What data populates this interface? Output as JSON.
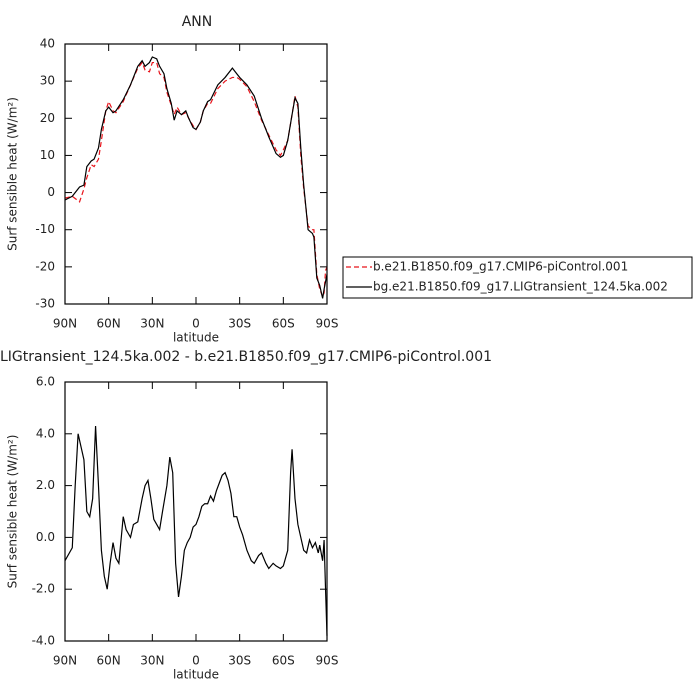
{
  "chart_data": [
    {
      "type": "line",
      "title": "ANN",
      "xlabel": "latitude",
      "ylabel": "Surf sensible heat (W/m²)",
      "x": [
        90,
        85,
        80,
        77,
        75,
        72,
        70,
        67,
        65,
        62,
        60,
        57,
        55,
        50,
        45,
        40,
        37,
        35,
        32,
        30,
        27,
        25,
        22,
        20,
        17,
        15,
        13,
        10,
        7,
        5,
        2,
        0,
        -3,
        -5,
        -8,
        -10,
        -15,
        -20,
        -25,
        -28,
        -30,
        -35,
        -40,
        -45,
        -50,
        -55,
        -58,
        -60,
        -63,
        -66,
        -68,
        -70,
        -72,
        -74,
        -77,
        -80,
        -81,
        -83,
        -85,
        -87,
        -88,
        -89,
        -90
      ],
      "series": [
        {
          "name": "b.e21.B1850.f09_g17.CMIP6-piControl.001",
          "color": "#e8141b",
          "line_style": "dashed",
          "values": [
            -1.5,
            -1,
            -2.5,
            1,
            4,
            7.5,
            7,
            9,
            14,
            22,
            24.5,
            22,
            21.5,
            24.5,
            29,
            33.5,
            35,
            33,
            32.5,
            35,
            35,
            32,
            31,
            27,
            23.5,
            21,
            23,
            21,
            21.5,
            20,
            18,
            17,
            19,
            22,
            24,
            24,
            28,
            30,
            31,
            31,
            30.5,
            28.5,
            24.5,
            19.5,
            15.5,
            11.5,
            10,
            11.5,
            14,
            21,
            26,
            23,
            10,
            1,
            -9,
            -10,
            -10,
            -22,
            -26,
            -28,
            -27,
            -21,
            -20
          ]
        },
        {
          "name": "bg.e21.B1850.f09_g17.LIGtransient_124.5ka.002",
          "color": "#000000",
          "line_style": "solid",
          "values": [
            -2,
            -1,
            1.5,
            2,
            7,
            8.5,
            9,
            12,
            17,
            22,
            23,
            21.5,
            22,
            25,
            29,
            34,
            35.5,
            34,
            35,
            36.5,
            36,
            34,
            32,
            28,
            24,
            19.5,
            22,
            21,
            22,
            20,
            17.5,
            17,
            19,
            22,
            24.5,
            25,
            29,
            31,
            33.5,
            32,
            31,
            29,
            26,
            20,
            15,
            10.5,
            9.5,
            10,
            14,
            21,
            25.5,
            24,
            12,
            2,
            -10,
            -11,
            -12,
            -23,
            -25,
            -28.5,
            -26,
            -24,
            -22
          ]
        }
      ],
      "xlim": [
        90,
        -90
      ],
      "xticks": [
        {
          "value": 90,
          "label": "90N"
        },
        {
          "value": 60,
          "label": "60N"
        },
        {
          "value": 30,
          "label": "30N"
        },
        0,
        {
          "value": -30,
          "label": "30S"
        },
        {
          "value": -60,
          "label": "60S"
        },
        {
          "value": -90,
          "label": "90S"
        }
      ],
      "ylim": [
        -30,
        40
      ],
      "yticks": [
        -30,
        -20,
        -10,
        0,
        10,
        20,
        30,
        40
      ],
      "legend": "outside-right"
    },
    {
      "type": "line",
      "title": "LIGtransient_124.5ka.002 - b.e21.B1850.f09_g17.CMIP6-piControl.001",
      "xlabel": "latitude",
      "ylabel": "Surf sensible heat (W/m²)",
      "x": [
        90,
        85,
        83,
        81,
        79,
        77,
        75,
        73,
        71,
        69,
        67,
        65,
        63,
        61,
        59,
        57,
        55,
        53,
        50,
        48,
        45,
        43,
        40,
        37,
        35,
        33,
        31,
        29,
        27,
        25,
        23,
        20,
        18,
        16,
        14,
        12,
        10,
        8,
        6,
        4,
        2,
        0,
        -2,
        -4,
        -6,
        -8,
        -10,
        -12,
        -14,
        -16,
        -18,
        -20,
        -22,
        -24,
        -26,
        -28,
        -30,
        -32,
        -35,
        -38,
        -40,
        -43,
        -45,
        -48,
        -50,
        -53,
        -55,
        -58,
        -60,
        -63,
        -65,
        -66,
        -68,
        -70,
        -72,
        -74,
        -76,
        -78,
        -80,
        -82,
        -84,
        -85,
        -87,
        -88,
        -89,
        -90
      ],
      "series": [
        {
          "color": "#000000",
          "line_style": "solid",
          "values": [
            -0.9,
            -0.4,
            2,
            4,
            3.5,
            3,
            1,
            0.8,
            1.5,
            4.3,
            2,
            -0.5,
            -1.5,
            -2,
            -1,
            -0.2,
            -0.8,
            -1,
            0.8,
            0.3,
            0,
            0.5,
            0.6,
            1.5,
            2,
            2.2,
            1.5,
            0.7,
            0.5,
            0.3,
            1,
            2,
            3.1,
            2.5,
            -1,
            -2.3,
            -1.5,
            -0.5,
            -0.2,
            0,
            0.4,
            0.5,
            0.8,
            1.2,
            1.3,
            1.3,
            1.6,
            1.4,
            1.8,
            2.1,
            2.4,
            2.5,
            2.2,
            1.7,
            0.8,
            0.8,
            0.4,
            0.1,
            -0.5,
            -0.9,
            -1,
            -0.7,
            -0.6,
            -1,
            -1.2,
            -1,
            -1.1,
            -1.2,
            -1.1,
            -0.5,
            2.5,
            3.4,
            1.5,
            0.5,
            0,
            -0.5,
            -0.6,
            -0.1,
            -0.4,
            -0.2,
            -0.6,
            -0.3,
            -0.9,
            -0.1,
            -2,
            -3.8
          ]
        }
      ],
      "xlim": [
        90,
        -90
      ],
      "xticks": [
        {
          "value": 90,
          "label": "90N"
        },
        {
          "value": 60,
          "label": "60N"
        },
        {
          "value": 30,
          "label": "30N"
        },
        0,
        {
          "value": -30,
          "label": "30S"
        },
        {
          "value": -60,
          "label": "60S"
        },
        {
          "value": -90,
          "label": "90S"
        }
      ],
      "ylim": [
        -4,
        6
      ],
      "yticks": [
        {
          "value": -4,
          "label": "-4.0"
        },
        {
          "value": -2,
          "label": "-2.0"
        },
        {
          "value": 0,
          "label": "0.0"
        },
        {
          "value": 2,
          "label": "2.0"
        },
        {
          "value": 4,
          "label": "4.0"
        },
        {
          "value": 6,
          "label": "6.0"
        }
      ]
    }
  ]
}
